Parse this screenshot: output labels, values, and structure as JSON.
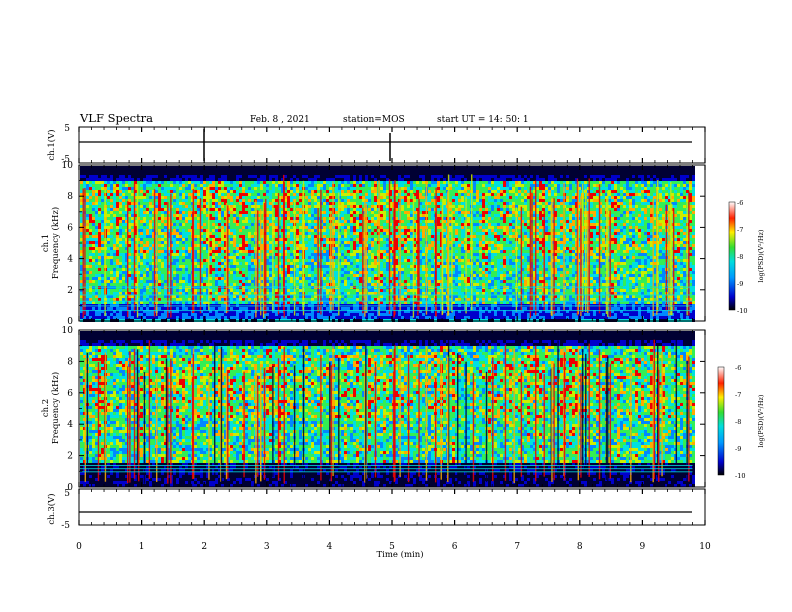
{
  "header": {
    "title": "VLF Spectra",
    "date": "Feb. 8 , 2021",
    "station": "station=MOS",
    "start": "start UT =  14: 50: 1"
  },
  "chart_data": [
    {
      "type": "line",
      "panel": "ch1-waveform",
      "ylabel": "ch.1(V)",
      "ylim": [
        -5,
        5
      ],
      "ytick_labels": [
        "5",
        "-5"
      ],
      "x_range_min": [
        0,
        10
      ],
      "baseline_value": 0
    },
    {
      "type": "heatmap",
      "panel": "ch1-spectrogram",
      "ylabel_line1": "ch.1",
      "ylabel_line2": "Frequency (kHz)",
      "yticks": [
        0,
        2,
        4,
        6,
        8,
        10
      ],
      "ylim_khz": [
        0,
        10
      ],
      "xlim_min": [
        0,
        10
      ],
      "data_end_min": 9.8,
      "colorbar": {
        "ticks": [
          "-6",
          "-7",
          "-8",
          "-9",
          "-10"
        ],
        "label": "log(PSD)(V²/Hz)",
        "range": [
          -10,
          -6
        ]
      },
      "colors": [
        "#000033",
        "#0000cc",
        "#0088ff",
        "#00e0e0",
        "#33ee55",
        "#ccee00",
        "#ffaa00",
        "#ee0000"
      ]
    },
    {
      "type": "heatmap",
      "panel": "ch2-spectrogram",
      "ylabel_line1": "ch.2",
      "ylabel_line2": "Frequency (kHz)",
      "yticks": [
        0,
        2,
        4,
        6,
        8,
        10
      ],
      "ylim_khz": [
        0,
        10
      ],
      "xlim_min": [
        0,
        10
      ],
      "data_end_min": 9.8,
      "colorbar": {
        "ticks": [
          "-6",
          "-7",
          "-8",
          "-9",
          "-10"
        ],
        "label": "log(PSD)(V²/Hz)",
        "range": [
          -10,
          -6
        ]
      },
      "colors": [
        "#000033",
        "#0000cc",
        "#0088ff",
        "#00e0e0",
        "#33ee55",
        "#ccee00",
        "#ffaa00",
        "#ee0000"
      ]
    },
    {
      "type": "line",
      "panel": "ch3-waveform",
      "ylabel": "ch.3(V)",
      "ylim": [
        -5,
        5
      ],
      "ytick_labels": [
        "5",
        "-5"
      ],
      "x_range_min": [
        0,
        10
      ],
      "baseline_value": 0
    }
  ],
  "xaxis": {
    "ticks": [
      "0",
      "1",
      "2",
      "3",
      "4",
      "5",
      "6",
      "7",
      "8",
      "9",
      "10"
    ],
    "label": "Time (min)"
  }
}
